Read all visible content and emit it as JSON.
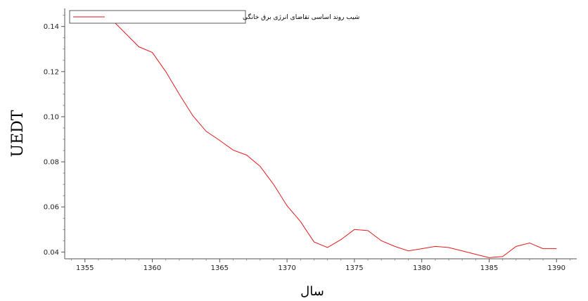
{
  "chart_data": {
    "type": "line",
    "title": "",
    "xlabel": "سال",
    "ylabel": "UEDT",
    "xlim": [
      1353.5,
      1391.5
    ],
    "ylim": [
      0.037,
      0.148
    ],
    "x_ticks": [
      1355,
      1360,
      1365,
      1370,
      1375,
      1380,
      1385,
      1390
    ],
    "x_tick_labels": [
      "1355",
      "1360",
      "1365",
      "1370",
      "1375",
      "1380",
      "1385",
      "1390"
    ],
    "y_ticks": [
      0.04,
      0.06,
      0.08,
      0.1,
      0.12,
      0.14
    ],
    "y_tick_labels": [
      "0.04",
      "0.06",
      "0.08",
      "0.10",
      "0.12",
      "0.14"
    ],
    "grid": false,
    "legend_position": "top-left",
    "series": [
      {
        "name": "شیب روند اساسی تقاضای انرژی برق خانگی",
        "color": "#e31a1c",
        "x": [
          1356,
          1357,
          1358,
          1359,
          1360,
          1361,
          1362,
          1363,
          1364,
          1365,
          1366,
          1367,
          1368,
          1369,
          1370,
          1371,
          1372,
          1373,
          1374,
          1375,
          1376,
          1377,
          1378,
          1379,
          1380,
          1381,
          1382,
          1383,
          1384,
          1385,
          1386,
          1387,
          1388,
          1389,
          1390
        ],
        "y": [
          0.1445,
          0.143,
          0.137,
          0.131,
          0.1285,
          0.12,
          0.11,
          0.1005,
          0.0935,
          0.0895,
          0.0852,
          0.083,
          0.078,
          0.07,
          0.0605,
          0.0535,
          0.0445,
          0.042,
          0.0455,
          0.05,
          0.0495,
          0.045,
          0.0425,
          0.0405,
          0.0415,
          0.0425,
          0.042,
          0.0405,
          0.039,
          0.0375,
          0.038,
          0.0425,
          0.044,
          0.0415,
          0.0415
        ]
      }
    ]
  }
}
